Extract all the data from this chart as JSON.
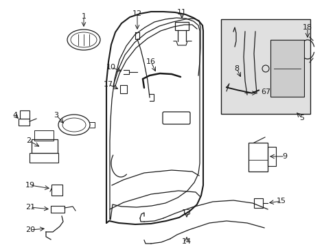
{
  "bg_color": "#ffffff",
  "line_color": "#1a1a1a",
  "detail_box_color": "#e0e0e0",
  "fig_width": 4.89,
  "fig_height": 3.6,
  "dpi": 100
}
